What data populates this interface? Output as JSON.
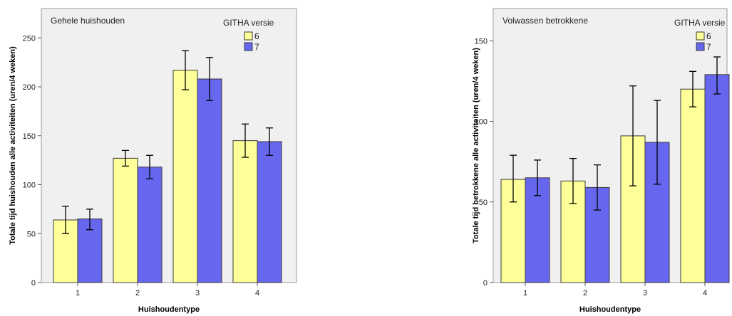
{
  "chart_data": [
    {
      "type": "bar",
      "title": "Gehele huishouden",
      "xlabel": "Huishoudentype",
      "ylabel": "Totale tijd huishouden alle activiteiten (uren/4 weken)",
      "categories": [
        "1",
        "2",
        "3",
        "4"
      ],
      "ylim": [
        0,
        280
      ],
      "yticks": [
        0,
        50,
        100,
        150,
        200,
        250
      ],
      "legend_title": "GITHA versie",
      "legend_position": "top-right",
      "grid": false,
      "series": [
        {
          "name": "6",
          "color": "#ffff99",
          "values": [
            64,
            127,
            217,
            145
          ],
          "err_low": [
            50,
            119,
            197,
            128
          ],
          "err_high": [
            78,
            135,
            237,
            162
          ]
        },
        {
          "name": "7",
          "color": "#6666ee",
          "values": [
            65,
            118,
            208,
            144
          ],
          "err_low": [
            54,
            106,
            186,
            130
          ],
          "err_high": [
            75,
            130,
            230,
            158
          ]
        }
      ]
    },
    {
      "type": "bar",
      "title": "Volwassen betrokkene",
      "xlabel": "Huishoudentype",
      "ylabel": "Totale tijd betrokkene alle activiteiten (uren/4 weken)",
      "categories": [
        "1",
        "2",
        "3",
        "4"
      ],
      "ylim": [
        0,
        170
      ],
      "yticks": [
        0,
        50,
        100,
        150
      ],
      "legend_title": "GITHA versie",
      "legend_position": "top-right",
      "grid": false,
      "series": [
        {
          "name": "6",
          "color": "#ffff99",
          "values": [
            64,
            63,
            91,
            120
          ],
          "err_low": [
            50,
            49,
            60,
            109
          ],
          "err_high": [
            79,
            77,
            122,
            131
          ]
        },
        {
          "name": "7",
          "color": "#6666ee",
          "values": [
            65,
            59,
            87,
            129
          ],
          "err_low": [
            54,
            45,
            61,
            117
          ],
          "err_high": [
            76,
            73,
            113,
            140
          ]
        }
      ]
    }
  ]
}
